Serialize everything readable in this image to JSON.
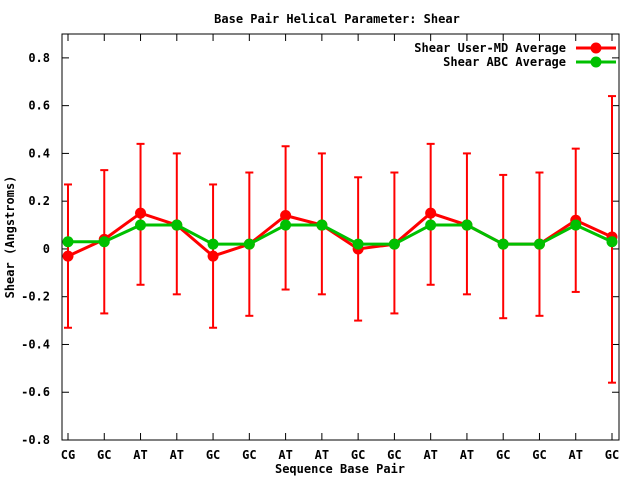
{
  "colors": {
    "background": "#ffffff",
    "axis": "#000000",
    "user_md_red": "#ff0000",
    "abc_green": "#00c000"
  },
  "chart_data": {
    "type": "line",
    "title": "Base Pair Helical Parameter: Shear",
    "xlabel": "Sequence Base Pair",
    "ylabel": "Shear (Angstroms)",
    "categories": [
      "CG",
      "GC",
      "AT",
      "AT",
      "GC",
      "GC",
      "AT",
      "AT",
      "GC",
      "GC",
      "AT",
      "AT",
      "GC",
      "GC",
      "AT",
      "GC"
    ],
    "series": [
      {
        "name": "Shear User-MD Average",
        "color": "#ff0000",
        "style": "yerrorlines",
        "marker": "filled-circle",
        "values": [
          -0.03,
          0.04,
          0.15,
          0.1,
          -0.03,
          0.02,
          0.14,
          0.1,
          0.0,
          0.02,
          0.15,
          0.1,
          0.02,
          0.02,
          0.12,
          0.05
        ],
        "err_high": [
          0.27,
          0.33,
          0.44,
          0.4,
          0.27,
          0.32,
          0.43,
          0.4,
          0.3,
          0.32,
          0.44,
          0.4,
          0.31,
          0.32,
          0.42,
          0.64
        ],
        "err_low": [
          -0.33,
          -0.27,
          -0.15,
          -0.19,
          -0.33,
          -0.28,
          -0.17,
          -0.19,
          -0.3,
          -0.27,
          -0.15,
          -0.19,
          -0.29,
          -0.28,
          -0.18,
          -0.56
        ]
      },
      {
        "name": "Shear ABC Average",
        "color": "#00c000",
        "style": "linespoints",
        "marker": "filled-circle",
        "values": [
          0.03,
          0.03,
          0.1,
          0.1,
          0.02,
          0.02,
          0.1,
          0.1,
          0.02,
          0.02,
          0.1,
          0.1,
          0.02,
          0.02,
          0.1,
          0.03
        ]
      }
    ],
    "ylim": [
      -0.8,
      0.9
    ],
    "yticks": [
      -0.8,
      -0.6,
      -0.4,
      -0.2,
      0,
      0.2,
      0.4,
      0.6,
      0.8
    ],
    "grid": false,
    "legend_position": "top-right"
  }
}
